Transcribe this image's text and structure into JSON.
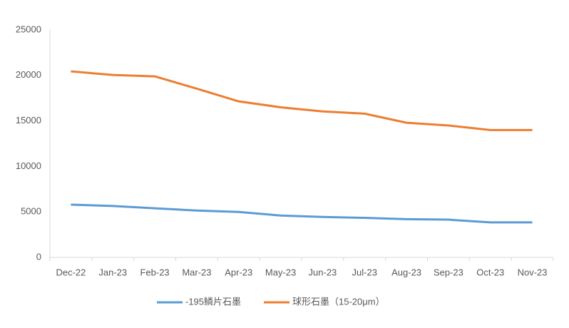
{
  "chart_data": {
    "type": "line",
    "categories": [
      "Dec-22",
      "Jan-23",
      "Feb-23",
      "Mar-23",
      "Apr-23",
      "May-23",
      "Jun-23",
      "Jul-23",
      "Aug-23",
      "Sep-23",
      "Oct-23",
      "Nov-23"
    ],
    "series": [
      {
        "name": "-195鳞片石墨",
        "color": "#5b9bd5",
        "values": [
          5800,
          5650,
          5400,
          5150,
          5000,
          4600,
          4450,
          4350,
          4200,
          4150,
          3850,
          3850
        ]
      },
      {
        "name": "球形石墨（15-20μm）",
        "color": "#ed7d31",
        "values": [
          20450,
          20050,
          19900,
          18550,
          17150,
          16500,
          16050,
          15800,
          14800,
          14500,
          14000,
          14000
        ]
      }
    ],
    "ylim": [
      0,
      25000
    ],
    "yticks": [
      0,
      5000,
      10000,
      15000,
      20000,
      25000
    ],
    "grid": false,
    "legend": "bottom"
  }
}
